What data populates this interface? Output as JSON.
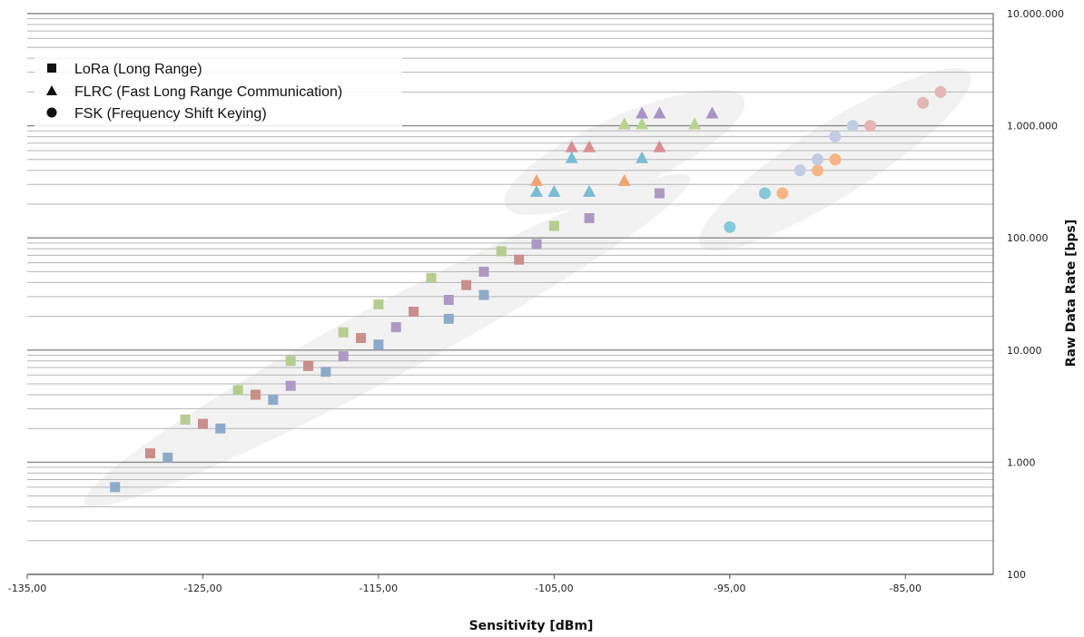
{
  "chart_data": {
    "type": "scatter",
    "title": "",
    "xlabel": "Sensitivity [dBm]",
    "ylabel": "Raw Data Rate [bps]",
    "xlim": [
      -135,
      -80
    ],
    "ylim": [
      100,
      10000000
    ],
    "y_scale": "log",
    "grid": true,
    "y_axis_position": "right",
    "legend_position": "top-left",
    "x_ticks": [
      "-135,00",
      "-125,00",
      "-115,00",
      "-105,00",
      "-95,00",
      "-85,00"
    ],
    "y_ticks": [
      "100",
      "1.000",
      "10.000",
      "100.000",
      "1.000.000",
      "10.000.000"
    ],
    "legend": [
      {
        "marker": "square",
        "label": "LoRa (Long Range)"
      },
      {
        "marker": "triangle",
        "label": "FLRC (Fast Long Range Communication)"
      },
      {
        "marker": "circle",
        "label": "FSK (Frequency Shift Keying)"
      }
    ],
    "cluster_color": "#f2f2f2",
    "clusters": [
      {
        "marker": "square",
        "from": [
          -130,
          600
        ],
        "to": [
          -99,
          250000
        ]
      },
      {
        "marker": "triangle",
        "from": [
          -106,
          260000
        ],
        "to": [
          -96,
          1300000
        ]
      },
      {
        "marker": "circle",
        "from": [
          -95,
          125000
        ],
        "to": [
          -83,
          2000000
        ]
      }
    ],
    "series": [
      {
        "marker": "square",
        "color": "#8eaacb",
        "points": [
          [
            -130,
            600
          ],
          [
            -127,
            1100
          ],
          [
            -124,
            2000
          ],
          [
            -121,
            3600
          ],
          [
            -118,
            6400
          ],
          [
            -115,
            11200
          ],
          [
            -111,
            19000
          ],
          [
            -109,
            31000
          ]
        ]
      },
      {
        "marker": "square",
        "color": "#c98f8a",
        "points": [
          [
            -128,
            1200
          ],
          [
            -125,
            2200
          ],
          [
            -122,
            4000
          ],
          [
            -119,
            7200
          ],
          [
            -116,
            12800
          ],
          [
            -113,
            22000
          ],
          [
            -110,
            38000
          ],
          [
            -107,
            64000
          ]
        ]
      },
      {
        "marker": "square",
        "color": "#b7cc91",
        "points": [
          [
            -126,
            2400
          ],
          [
            -123,
            4400
          ],
          [
            -120,
            8000
          ],
          [
            -117,
            14400
          ],
          [
            -115,
            25600
          ],
          [
            -112,
            44000
          ],
          [
            -108,
            76000
          ],
          [
            -105,
            128000
          ]
        ]
      },
      {
        "marker": "square",
        "color": "#ae98c4",
        "points": [
          [
            -120,
            4800
          ],
          [
            -117,
            8800
          ],
          [
            -114,
            16000
          ],
          [
            -111,
            28000
          ],
          [
            -109,
            50000
          ],
          [
            -106,
            88000
          ],
          [
            -103,
            150000
          ],
          [
            -99,
            250000
          ]
        ]
      },
      {
        "marker": "triangle",
        "color": "#79bcd5",
        "points": [
          [
            -106,
            260000
          ],
          [
            -105,
            260000
          ],
          [
            -103,
            260000
          ],
          [
            -104,
            520000
          ],
          [
            -100,
            520000
          ]
        ]
      },
      {
        "marker": "triangle",
        "color": "#f0a573",
        "points": [
          [
            -106,
            325000
          ],
          [
            -101,
            325000
          ]
        ]
      },
      {
        "marker": "triangle",
        "color": "#d98f8f",
        "points": [
          [
            -104,
            650000
          ],
          [
            -103,
            650000
          ],
          [
            -99,
            650000
          ]
        ]
      },
      {
        "marker": "triangle",
        "color": "#b7d48f",
        "points": [
          [
            -101,
            1040000
          ],
          [
            -100,
            1040000
          ],
          [
            -97,
            1040000
          ]
        ]
      },
      {
        "marker": "triangle",
        "color": "#a894c7",
        "points": [
          [
            -100,
            1300000
          ],
          [
            -99,
            1300000
          ],
          [
            -96,
            1300000
          ]
        ]
      },
      {
        "marker": "circle",
        "color": "#86c8dc",
        "points": [
          [
            -95,
            125000
          ],
          [
            -93,
            250000
          ]
        ]
      },
      {
        "marker": "circle",
        "color": "#f6b587",
        "points": [
          [
            -92,
            250000
          ],
          [
            -90,
            400000
          ],
          [
            -89,
            500000
          ]
        ]
      },
      {
        "marker": "circle",
        "color": "#c2cde3",
        "points": [
          [
            -91,
            400000
          ],
          [
            -90,
            500000
          ],
          [
            -89,
            800000
          ],
          [
            -88,
            1000000
          ]
        ]
      },
      {
        "marker": "circle",
        "color": "#e5b6b6",
        "points": [
          [
            -87,
            1000000
          ],
          [
            -84,
            1600000
          ],
          [
            -83,
            2000000
          ]
        ]
      }
    ]
  }
}
